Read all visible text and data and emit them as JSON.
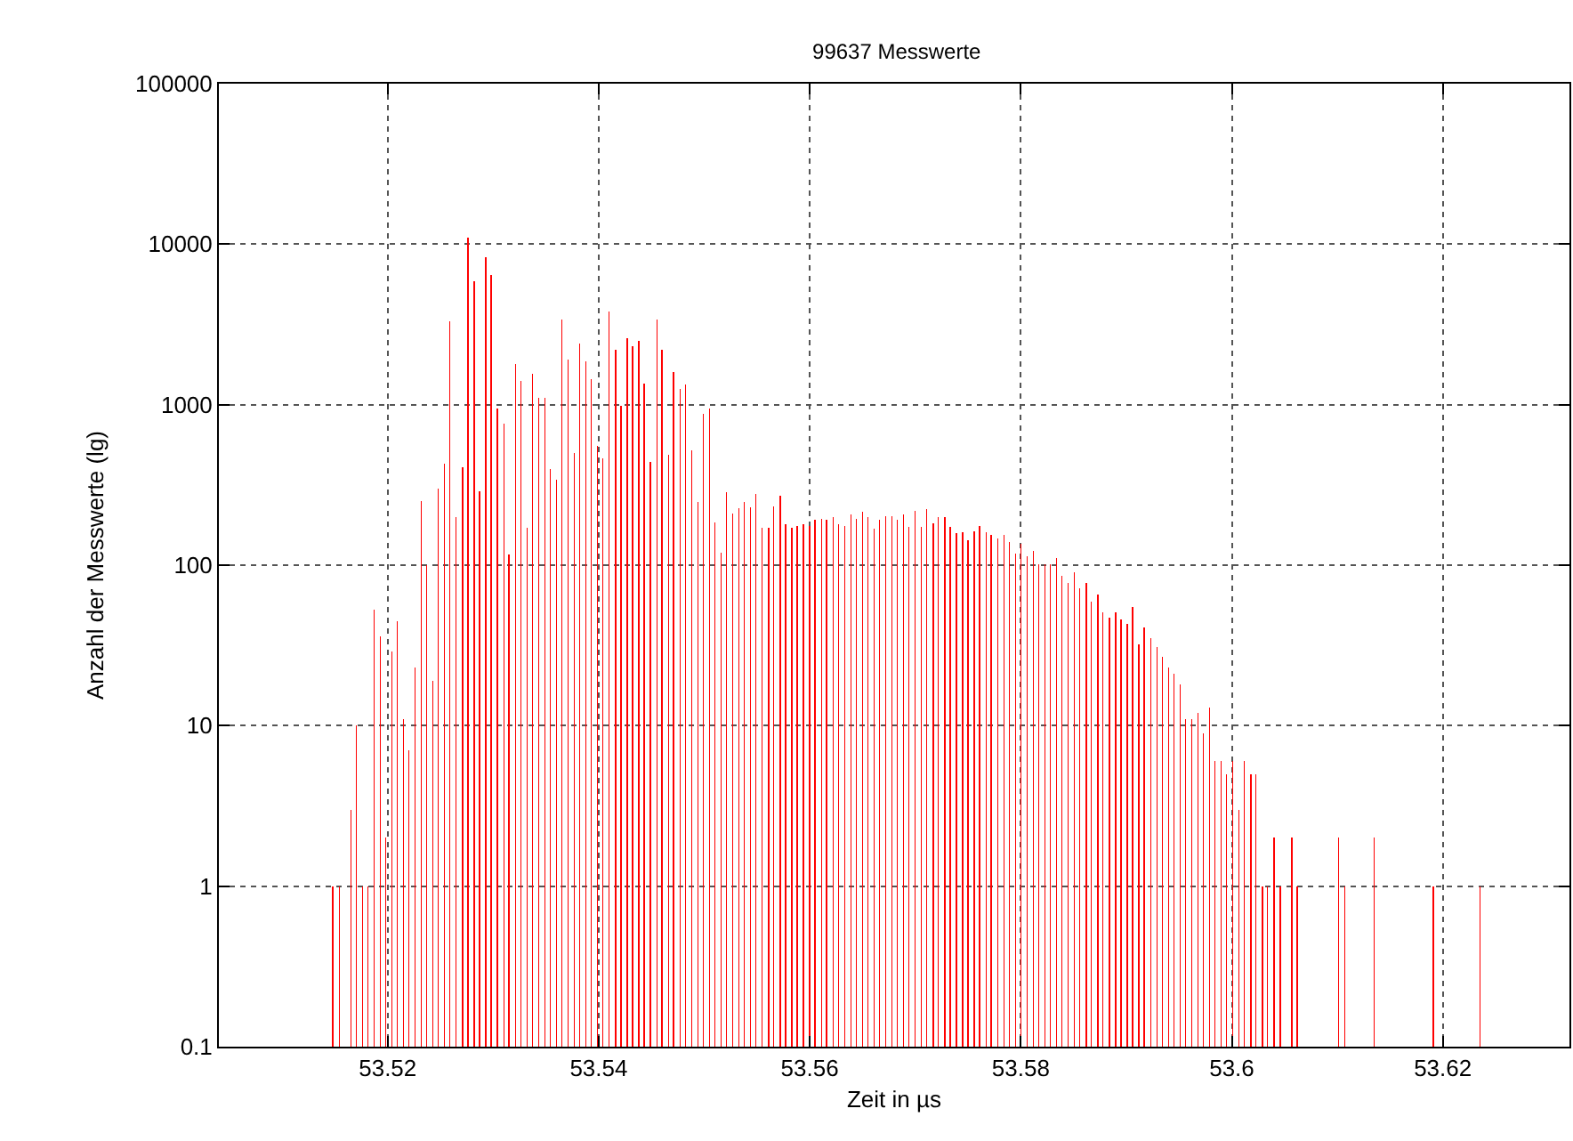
{
  "chart_data": {
    "type": "bar",
    "title": "99637 Messwerte",
    "xlabel": "Zeit in µs",
    "ylabel": "Anzahl der Messwerte (lg)",
    "x": [
      53.5148,
      53.5154,
      53.5165,
      53.517,
      53.5176,
      53.5181,
      53.5187,
      53.5193,
      53.5198,
      53.5204,
      53.5209,
      53.5215,
      53.522,
      53.5226,
      53.5232,
      53.5237,
      53.5243,
      53.5248,
      53.5254,
      53.5259,
      53.5265,
      53.5271,
      53.5276,
      53.5282,
      53.5287,
      53.5293,
      53.5298,
      53.5304,
      53.531,
      53.5315,
      53.5321,
      53.5326,
      53.5332,
      53.5337,
      53.5343,
      53.5349,
      53.5354,
      53.536,
      53.5365,
      53.5371,
      53.5377,
      53.5382,
      53.5388,
      53.5393,
      53.5399,
      53.5404,
      53.541,
      53.5416,
      53.5421,
      53.5427,
      53.5432,
      53.5438,
      53.5443,
      53.5449,
      53.5455,
      53.546,
      53.5466,
      53.5471,
      53.5477,
      53.5482,
      53.5488,
      53.5494,
      53.5499,
      53.5505,
      53.551,
      53.5516,
      53.5521,
      53.5527,
      53.5533,
      53.5538,
      53.5544,
      53.5549,
      53.5555,
      53.5561,
      53.5566,
      53.5572,
      53.5577,
      53.5583,
      53.5588,
      53.5594,
      53.56,
      53.5605,
      53.5611,
      53.5616,
      53.5622,
      53.5627,
      53.5633,
      53.5639,
      53.5644,
      53.565,
      53.5655,
      53.5661,
      53.5666,
      53.5672,
      53.5678,
      53.5683,
      53.5689,
      53.5694,
      53.57,
      53.5706,
      53.5711,
      53.5717,
      53.5722,
      53.5728,
      53.5733,
      53.5739,
      53.5745,
      53.575,
      53.5756,
      53.5761,
      53.5767,
      53.5772,
      53.5778,
      53.5784,
      53.5789,
      53.5795,
      53.58,
      53.5806,
      53.5812,
      53.5817,
      53.5823,
      53.5828,
      53.5834,
      53.5839,
      53.5845,
      53.5851,
      53.5856,
      53.5862,
      53.5867,
      53.5873,
      53.5878,
      53.5884,
      53.589,
      53.5895,
      53.5901,
      53.5906,
      53.5912,
      53.5917,
      53.5923,
      53.5929,
      53.5934,
      53.594,
      53.5945,
      53.5951,
      53.5956,
      53.5962,
      53.5968,
      53.5973,
      53.5979,
      53.5984,
      53.599,
      53.5995,
      53.6001,
      53.6007,
      53.6012,
      53.6018,
      53.6023,
      53.6029,
      53.6034,
      53.604,
      53.6046,
      53.6057,
      53.6062,
      53.6101,
      53.6107,
      53.6135,
      53.6191,
      53.6235
    ],
    "values": [
      1,
      1,
      3,
      10,
      1,
      1,
      53,
      36,
      2,
      29,
      45,
      11,
      7,
      23,
      250,
      100,
      19,
      300,
      430,
      3300,
      200,
      410,
      11000,
      5900,
      290,
      8300,
      6400,
      950,
      760,
      117,
      1800,
      1400,
      170,
      1560,
      1100,
      1100,
      395,
      340,
      3400,
      1900,
      500,
      2400,
      1850,
      1450,
      555,
      460,
      3800,
      2200,
      980,
      2600,
      2300,
      2500,
      1360,
      440,
      3400,
      2200,
      490,
      1600,
      1260,
      1340,
      520,
      247,
      880,
      950,
      185,
      120,
      286,
      210,
      225,
      249,
      229,
      276,
      170,
      170,
      233,
      271,
      180,
      170,
      176,
      180,
      176,
      191,
      194,
      191,
      200,
      179,
      176,
      208,
      194,
      215,
      200,
      168,
      191,
      201,
      201,
      191,
      208,
      173,
      217,
      173,
      223,
      183,
      200,
      200,
      173,
      158,
      161,
      143,
      163,
      176,
      161,
      155,
      146,
      155,
      139,
      118,
      136,
      113,
      123,
      101,
      101,
      101,
      111,
      86,
      77,
      90,
      72,
      77,
      59,
      66,
      51,
      47,
      51,
      46,
      43,
      55,
      32,
      41,
      35,
      31,
      27,
      23,
      21,
      18,
      11,
      11,
      12,
      9,
      13,
      6,
      6,
      5,
      6,
      3,
      6,
      5,
      5,
      1,
      1,
      2,
      1,
      2,
      1,
      2,
      1,
      2,
      1,
      1
    ],
    "color": "#ff0000",
    "xlim": [
      53.504,
      53.632
    ],
    "xticks": [
      53.52,
      53.54,
      53.56,
      53.58,
      53.6,
      53.62
    ],
    "ylim": [
      0.1,
      100000
    ],
    "yticks": [
      0.1,
      1,
      10,
      100,
      1000,
      10000,
      100000
    ],
    "log": true,
    "grid": true
  }
}
